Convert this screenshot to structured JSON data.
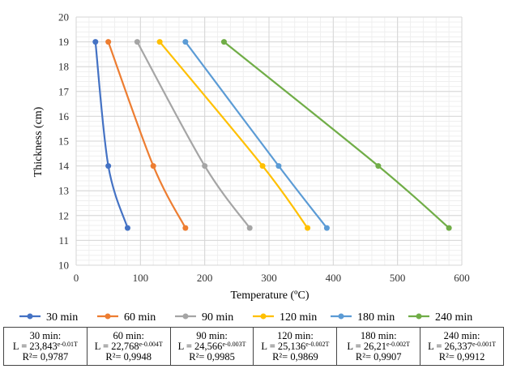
{
  "chart_data": {
    "type": "line",
    "xlabel": "Temperature (ºC)",
    "ylabel": "Thickness (cm)",
    "xlim": [
      0,
      600
    ],
    "ylim": [
      10,
      20
    ],
    "xticks": [
      0,
      100,
      200,
      300,
      400,
      500,
      600
    ],
    "yticks": [
      10,
      11,
      12,
      13,
      14,
      15,
      16,
      17,
      18,
      19,
      20
    ],
    "grid": true,
    "legend_position": "bottom",
    "series": [
      {
        "name": "30 min",
        "color": "#4472c4",
        "points": [
          [
            30,
            19
          ],
          [
            50,
            14
          ],
          [
            80,
            11.5
          ]
        ]
      },
      {
        "name": "60 min",
        "color": "#ed7d31",
        "points": [
          [
            50,
            19
          ],
          [
            120,
            14
          ],
          [
            170,
            11.5
          ]
        ]
      },
      {
        "name": "90 min",
        "color": "#a5a5a5",
        "points": [
          [
            95,
            19
          ],
          [
            200,
            14
          ],
          [
            270,
            11.5
          ]
        ]
      },
      {
        "name": "120 min",
        "color": "#ffc000",
        "points": [
          [
            130,
            19
          ],
          [
            290,
            14
          ],
          [
            360,
            11.5
          ]
        ]
      },
      {
        "name": "180 min",
        "color": "#5b9bd5",
        "points": [
          [
            170,
            19
          ],
          [
            315,
            14
          ],
          [
            390,
            11.5
          ]
        ]
      },
      {
        "name": "240 min",
        "color": "#70ad47",
        "points": [
          [
            230,
            19
          ],
          [
            470,
            14
          ],
          [
            580,
            11.5
          ]
        ]
      }
    ]
  },
  "equations": [
    {
      "label": "30 min:",
      "l_base": "L = 23,843",
      "l_exp": "e-0.01T",
      "r2": "R²= 0,9787"
    },
    {
      "label": "60 min:",
      "l_base": "L = 22,768",
      "l_exp": "e-0.004T",
      "r2": "R²= 0,9948"
    },
    {
      "label": "90 min:",
      "l_base": "L = 24,566",
      "l_exp": "e-0.003T",
      "r2": "R²= 0,9985"
    },
    {
      "label": "120 min:",
      "l_base": "L = 25,136",
      "l_exp": "e-0.002T",
      "r2": "R²= 0,9869"
    },
    {
      "label": "180 min:",
      "l_base": "L = 26,21",
      "l_exp": "e-0.002T",
      "r2": "R²= 0,9907"
    },
    {
      "label": "240 min:",
      "l_base": "L = 26,337",
      "l_exp": "e-0.001T",
      "r2": "R²= 0,9912"
    }
  ]
}
